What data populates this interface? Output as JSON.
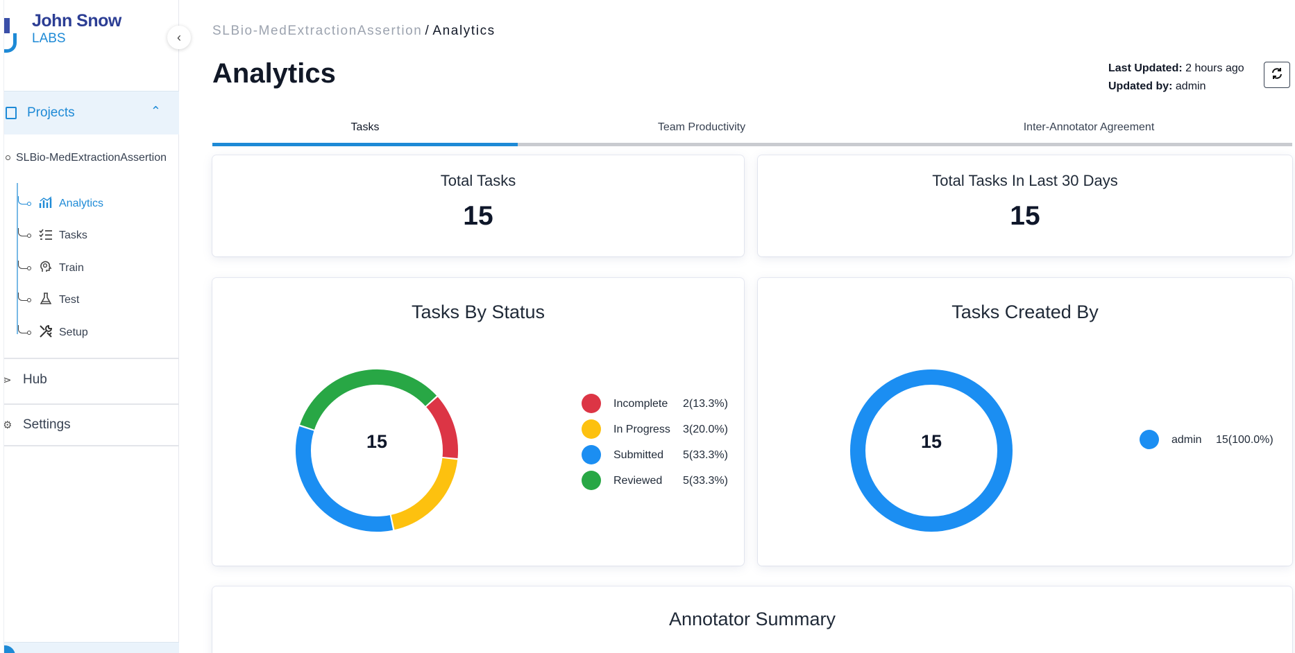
{
  "brand": {
    "line1": "John Snow",
    "line2": "LABS"
  },
  "sidebar": {
    "collapse_icon": "chevron-left-icon",
    "projects_label": "Projects",
    "project_name": "SLBio-MedExtractionAssertion",
    "items": [
      {
        "label": "Analytics",
        "icon": "analytics-icon",
        "active": true
      },
      {
        "label": "Tasks",
        "icon": "tasks-icon",
        "active": false
      },
      {
        "label": "Train",
        "icon": "train-icon",
        "active": false
      },
      {
        "label": "Test",
        "icon": "test-icon",
        "active": false
      },
      {
        "label": "Setup",
        "icon": "setup-icon",
        "active": false
      }
    ],
    "hub_label": "Hub",
    "settings_label": "Settings"
  },
  "breadcrumb": {
    "project": "SLBio-MedExtractionAssertion",
    "separator": "/",
    "current": "Analytics"
  },
  "page": {
    "title": "Analytics",
    "last_updated_label": "Last Updated:",
    "last_updated_value": "2 hours ago",
    "updated_by_label": "Updated by:",
    "updated_by_value": "admin"
  },
  "tabs": [
    {
      "label": "Tasks",
      "active": true
    },
    {
      "label": "Team Productivity",
      "active": false
    },
    {
      "label": "Inter-Annotator Agreement",
      "active": false
    }
  ],
  "stats": {
    "total_tasks_label": "Total Tasks",
    "total_tasks_value": "15",
    "last30_label": "Total Tasks In Last 30 Days",
    "last30_value": "15"
  },
  "chart_data": [
    {
      "type": "pie",
      "title": "Tasks By Status",
      "center_label": "15",
      "series": [
        {
          "name": "Incomplete",
          "value": 2,
          "display": "2(13.3%)",
          "color": "#dc3545"
        },
        {
          "name": "In Progress",
          "value": 3,
          "display": "3(20.0%)",
          "color": "#fdc10f"
        },
        {
          "name": "Submitted",
          "value": 5,
          "display": "5(33.3%)",
          "color": "#1b8ef2"
        },
        {
          "name": "Reviewed",
          "value": 5,
          "display": "5(33.3%)",
          "color": "#28a745"
        }
      ]
    },
    {
      "type": "pie",
      "title": "Tasks Created By",
      "center_label": "15",
      "series": [
        {
          "name": "admin",
          "value": 15,
          "display": "15(100.0%)",
          "color": "#1b8ef2"
        }
      ]
    }
  ],
  "annotator_summary_title": "Annotator Summary"
}
